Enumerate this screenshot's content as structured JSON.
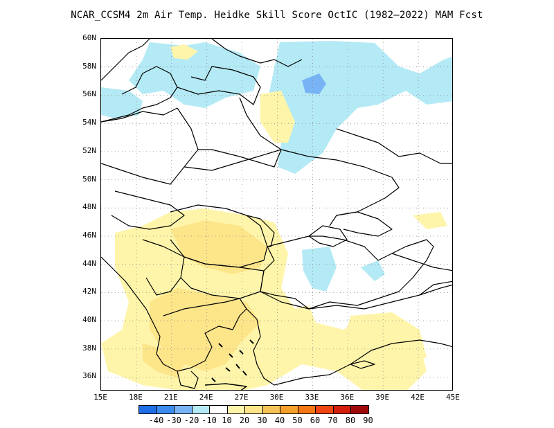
{
  "title": "NCAR_CCSM4  2m Air Temp. Heidke Skill Score OctIC (1982–2022) MAM Fcst",
  "map": {
    "lon_range": [
      15,
      45
    ],
    "lat_range": [
      35,
      60
    ],
    "lat_labels": [
      "60N",
      "58N",
      "56N",
      "54N",
      "52N",
      "50N",
      "48N",
      "46N",
      "44N",
      "42N",
      "40N",
      "38N",
      "36N"
    ],
    "lon_labels": [
      "15E",
      "18E",
      "21E",
      "24E",
      "27E",
      "30E",
      "33E",
      "36E",
      "39E",
      "42E",
      "45E"
    ],
    "grid": "dotted"
  },
  "colorbar": {
    "labels": [
      "-40",
      "-30",
      "-20",
      "-10",
      "10",
      "20",
      "30",
      "40",
      "50",
      "60",
      "70",
      "80",
      "90"
    ],
    "colors": [
      "#1e6ee6",
      "#3c8cf0",
      "#78b4f5",
      "#b4eaf5",
      "#ffffff",
      "#fff5aa",
      "#fde58a",
      "#f5c358",
      "#f5a02a",
      "#f57814",
      "#f04614",
      "#d21e0a",
      "#a00a0a"
    ]
  }
}
